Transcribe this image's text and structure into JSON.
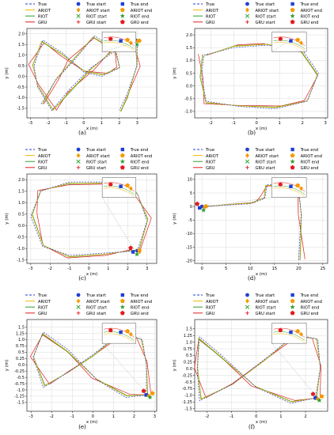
{
  "legend": {
    "true": "True",
    "ariot": "ARIOT",
    "riot": "RIOT",
    "gru": "GRU",
    "true_start": "True start",
    "ariot_start": "ARIOT start",
    "riot_start": "RIOT start",
    "gru_start": "GRU start",
    "true_end": "True end",
    "ariot_end": "ARIOT end",
    "riot_end": "RIOT end",
    "gru_end": "GRU end"
  },
  "colors": {
    "true": "#1f3fd6",
    "ariot": "#f5b800",
    "riot": "#2ca02c",
    "gru": "#e41a1c",
    "start_end_ariot": "#f59a00"
  },
  "chart_data": [
    {
      "type": "line",
      "label": "(a)",
      "xlabel": "x (m)",
      "ylabel": "y (m)",
      "xlim": [
        -3.2,
        4.1
      ],
      "ylim": [
        -1.95,
        2.25
      ],
      "xticks": [
        "-3",
        "-2",
        "-1",
        "0",
        "1",
        "2",
        "3"
      ],
      "xtick_values": [
        -3,
        -2,
        -1,
        0,
        1,
        2,
        3
      ],
      "yticks": [
        "-1.5",
        "-1.0",
        "-0.5",
        "0.0",
        "0.5",
        "1.0",
        "1.5",
        "2.0"
      ],
      "ytick_values": [
        -1.5,
        -1.0,
        -0.5,
        0.0,
        0.5,
        1.0,
        1.5,
        2.0
      ],
      "legend_position": "top",
      "path": [
        [
          -2.4,
          -1.3
        ],
        [
          -1.6,
          -0.2
        ],
        [
          -0.6,
          0.7
        ],
        [
          0.6,
          1.9
        ],
        [
          1.8,
          1.3
        ],
        [
          2.0,
          0.4
        ],
        [
          1.0,
          0.0
        ],
        [
          0.0,
          0.2
        ],
        [
          -1.2,
          1.1
        ],
        [
          -2.3,
          1.7
        ],
        [
          -2.8,
          0.5
        ],
        [
          -2.6,
          -0.5
        ],
        [
          -1.8,
          -1.6
        ],
        [
          -0.8,
          -0.6
        ],
        [
          0.4,
          0.4
        ],
        [
          1.6,
          1.1
        ],
        [
          3.0,
          1.7
        ],
        [
          3.0,
          0.5
        ],
        [
          2.4,
          -0.9
        ],
        [
          2.0,
          -1.6
        ]
      ],
      "true_start": [
        2.9,
        1.7
      ],
      "true_end": [
        2.9,
        1.6
      ]
    },
    {
      "type": "line",
      "label": "(b)",
      "xlabel": "x (m)",
      "ylabel": "y (m)",
      "xlim": [
        -2.7,
        3.1
      ],
      "ylim": [
        -1.25,
        2.25
      ],
      "xticks": [
        "-2",
        "-1",
        "0",
        "1",
        "2",
        "3"
      ],
      "xtick_values": [
        -2,
        -1,
        0,
        1,
        2,
        3
      ],
      "yticks": [
        "-1.0",
        "-0.5",
        "0.0",
        "0.5",
        "1.0",
        "1.5",
        "2.0"
      ],
      "ytick_values": [
        -1.0,
        -0.5,
        0.0,
        0.5,
        1.0,
        1.5,
        2.0
      ],
      "legend_position": "top",
      "path": [
        [
          -2.3,
          1.2
        ],
        [
          -1.0,
          1.5
        ],
        [
          0.5,
          1.6
        ],
        [
          2.0,
          1.4
        ],
        [
          2.7,
          0.5
        ],
        [
          2.2,
          -0.6
        ],
        [
          0.8,
          -0.9
        ],
        [
          -0.8,
          -0.8
        ],
        [
          -2.2,
          -0.6
        ],
        [
          -2.4,
          0.4
        ],
        [
          -2.3,
          1.2
        ]
      ],
      "true_start": [
        1.2,
        1.75
      ],
      "true_end": [
        1.3,
        1.7
      ]
    },
    {
      "type": "line",
      "label": "(c)",
      "xlabel": "x (m)",
      "ylabel": "y (m)",
      "xlim": [
        -3.2,
        3.5
      ],
      "ylim": [
        -1.65,
        2.25
      ],
      "xticks": [
        "-3",
        "-2",
        "-1",
        "0",
        "1",
        "2",
        "3"
      ],
      "xtick_values": [
        -3,
        -2,
        -1,
        0,
        1,
        2,
        3
      ],
      "yticks": [
        "-1.5",
        "-1.0",
        "-0.5",
        "0.0",
        "0.5",
        "1.0",
        "1.5",
        "2.0"
      ],
      "ytick_values": [
        -1.5,
        -1.0,
        -0.5,
        0.0,
        0.5,
        1.0,
        1.5,
        2.0
      ],
      "legend_position": "top",
      "path": [
        [
          2.5,
          -1.1
        ],
        [
          3.0,
          0.2
        ],
        [
          2.5,
          1.4
        ],
        [
          0.8,
          1.9
        ],
        [
          -1.0,
          1.9
        ],
        [
          -2.5,
          1.5
        ],
        [
          -3.0,
          0.4
        ],
        [
          -2.4,
          -0.9
        ],
        [
          -1.0,
          -1.3
        ],
        [
          0.8,
          -1.2
        ],
        [
          2.5,
          -1.1
        ]
      ],
      "true_start": [
        2.5,
        -1.1
      ],
      "true_end": [
        2.4,
        -1.15
      ]
    },
    {
      "type": "line",
      "label": "(d)",
      "xlabel": "x (m)",
      "ylabel": "y (m)",
      "xlim": [
        -1.5,
        26
      ],
      "ylim": [
        -21,
        12
      ],
      "xticks": [
        "0",
        "5",
        "10",
        "15",
        "20",
        "25"
      ],
      "xtick_values": [
        0,
        5,
        10,
        15,
        20,
        25
      ],
      "yticks": [
        "-20",
        "-15",
        "-10",
        "-5",
        "0",
        "5",
        "10"
      ],
      "ytick_values": [
        -20,
        -15,
        -10,
        -5,
        0,
        5,
        10
      ],
      "legend_position": "top",
      "path": [
        [
          0.0,
          0.0
        ],
        [
          10.0,
          1.0
        ],
        [
          13.0,
          3.0
        ],
        [
          13.5,
          8.0
        ],
        [
          20.0,
          8.0
        ],
        [
          20.5,
          -3.0
        ],
        [
          20.0,
          -20.0
        ]
      ],
      "true_start": [
        0.0,
        0.0
      ],
      "true_end": [
        0.0,
        -0.5
      ]
    },
    {
      "type": "line",
      "label": "(e)",
      "xlabel": "x (m)",
      "ylabel": "y (m)",
      "xlim": [
        -3.2,
        3.1
      ],
      "ylim": [
        -1.85,
        1.8
      ],
      "xticks": [
        "-3",
        "-2",
        "-1",
        "0",
        "1",
        "2",
        "3"
      ],
      "xtick_values": [
        -3,
        -2,
        -1,
        0,
        1,
        2,
        3
      ],
      "yticks": [
        "-1.5",
        "-1.25",
        "-1.0",
        "-0.75",
        "-0.5",
        "-0.25",
        "0.0",
        "0.25",
        "0.5",
        "0.75",
        "1.0",
        "1.25",
        "1.5"
      ],
      "ytick_values": [
        -1.5,
        -1.25,
        -1.0,
        -0.75,
        -0.5,
        -0.25,
        0.0,
        0.25,
        0.5,
        0.75,
        1.0,
        1.25,
        1.5
      ],
      "legend_position": "top",
      "path": [
        [
          2.6,
          -1.2
        ],
        [
          1.6,
          -1.3
        ],
        [
          0.2,
          -0.6
        ],
        [
          -1.2,
          0.6
        ],
        [
          -2.4,
          1.3
        ],
        [
          -2.9,
          0.3
        ],
        [
          -2.4,
          -0.9
        ],
        [
          -1.2,
          -0.3
        ],
        [
          0.0,
          0.4
        ],
        [
          1.4,
          1.3
        ],
        [
          2.4,
          1.0
        ],
        [
          2.6,
          0.0
        ],
        [
          2.6,
          -1.2
        ]
      ],
      "true_start": [
        2.6,
        -1.2
      ],
      "true_end": [
        2.7,
        -1.2
      ]
    },
    {
      "type": "line",
      "label": "(f)",
      "xlabel": "x (m)",
      "ylabel": "y (m)",
      "xlim": [
        -2.5,
        2.9
      ],
      "ylim": [
        -1.6,
        1.85
      ],
      "xticks": [
        "-2",
        "-1",
        "0",
        "1",
        "2"
      ],
      "xtick_values": [
        -2,
        -1,
        0,
        1,
        2
      ],
      "yticks": [
        "-1.5",
        "-1.25",
        "-1.0",
        "-0.75",
        "-0.5",
        "-0.25",
        "0.0",
        "0.25",
        "0.5",
        "0.75",
        "1.0",
        "1.25",
        "1.5"
      ],
      "ytick_values": [
        -1.5,
        -1.25,
        -1.0,
        -0.75,
        -0.5,
        -0.25,
        0.0,
        0.25,
        0.5,
        0.75,
        1.0,
        1.25,
        1.5
      ],
      "legend_position": "top",
      "path": [
        [
          2.4,
          -1.1
        ],
        [
          1.4,
          -1.3
        ],
        [
          0.0,
          -0.7
        ],
        [
          -1.4,
          0.5
        ],
        [
          -2.3,
          1.2
        ],
        [
          -2.4,
          0.0
        ],
        [
          -2.3,
          -1.2
        ],
        [
          -1.0,
          -0.6
        ],
        [
          0.4,
          0.4
        ],
        [
          1.6,
          1.3
        ],
        [
          2.5,
          1.1
        ],
        [
          2.6,
          0.0
        ],
        [
          2.4,
          -1.1
        ]
      ],
      "true_start": [
        2.4,
        -1.1
      ],
      "true_end": [
        2.5,
        -1.1
      ]
    }
  ]
}
